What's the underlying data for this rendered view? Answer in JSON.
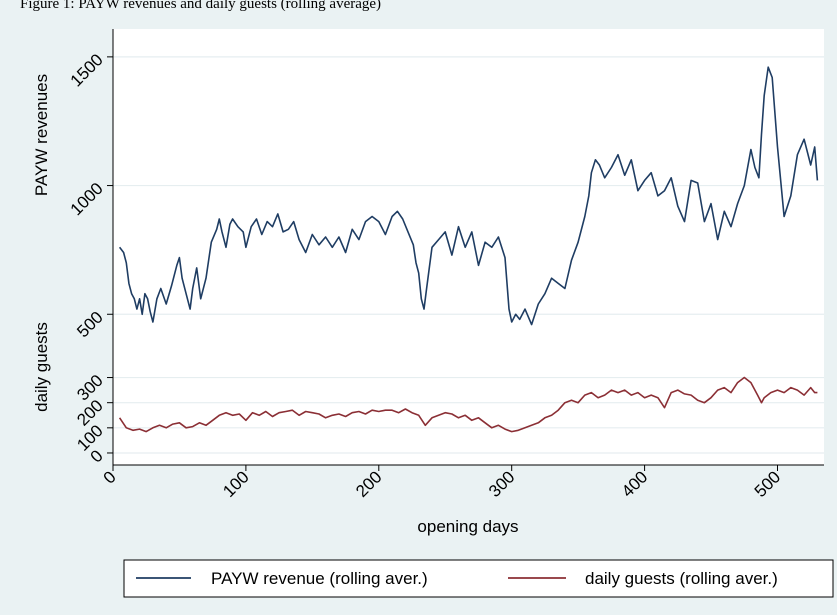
{
  "caption_text": "Figure 1: PAYW revenues and daily guests (rolling average)",
  "colors": {
    "background": "#eaf2f3",
    "plot_background": "#ffffff",
    "gridline": "#e6eef0",
    "revenue": "#1f3d63",
    "guests": "#8b2f35"
  },
  "chart_data": {
    "type": "line",
    "xlabel": "opening days",
    "xlim": [
      0,
      535
    ],
    "x_ticks": [
      0,
      100,
      200,
      300,
      400,
      500
    ],
    "x_tick_labels": [
      "0",
      "100",
      "200",
      "300",
      "400",
      "500"
    ],
    "grid": true,
    "legend_position": "bottom",
    "panels": [
      {
        "name": "revenue",
        "ylabel": "PAYW revenues",
        "ylim": [
          400,
          1550
        ],
        "y_ticks": [
          500,
          1000,
          1500
        ],
        "y_tick_labels": [
          "500",
          "1000",
          "1500"
        ]
      },
      {
        "name": "guests",
        "ylabel": "daily guests",
        "ylim": [
          -20,
          330
        ],
        "y_ticks": [
          0,
          100,
          200,
          300
        ],
        "y_tick_labels": [
          "0",
          "100",
          "200",
          "300"
        ]
      }
    ],
    "series": [
      {
        "name": "PAYW revenue (rolling aver.)",
        "panel": "revenue",
        "x": [
          5,
          8,
          10,
          12,
          14,
          16,
          18,
          20,
          22,
          24,
          26,
          28,
          30,
          33,
          36,
          40,
          44,
          48,
          50,
          52,
          55,
          58,
          60,
          63,
          66,
          70,
          74,
          78,
          80,
          82,
          85,
          88,
          90,
          94,
          98,
          100,
          104,
          108,
          112,
          116,
          120,
          124,
          128,
          132,
          136,
          140,
          145,
          150,
          155,
          160,
          165,
          170,
          175,
          180,
          185,
          190,
          195,
          200,
          205,
          210,
          214,
          218,
          222,
          226,
          228,
          230,
          232,
          234,
          236,
          238,
          240,
          245,
          250,
          255,
          260,
          265,
          270,
          275,
          280,
          285,
          290,
          295,
          298,
          300,
          303,
          306,
          310,
          315,
          320,
          325,
          330,
          335,
          340,
          345,
          350,
          355,
          358,
          360,
          363,
          366,
          370,
          375,
          380,
          385,
          390,
          395,
          400,
          405,
          410,
          415,
          420,
          425,
          430,
          435,
          440,
          445,
          450,
          455,
          460,
          465,
          470,
          475,
          480,
          483,
          486,
          488,
          490,
          493,
          496,
          500,
          505,
          510,
          515,
          520,
          525,
          528,
          530
        ],
        "y": [
          760,
          740,
          700,
          620,
          580,
          560,
          520,
          560,
          500,
          580,
          560,
          510,
          470,
          560,
          600,
          540,
          610,
          690,
          720,
          640,
          580,
          520,
          600,
          680,
          560,
          640,
          780,
          830,
          870,
          820,
          760,
          850,
          870,
          840,
          820,
          760,
          840,
          870,
          810,
          860,
          840,
          890,
          820,
          830,
          860,
          790,
          740,
          810,
          770,
          800,
          760,
          800,
          740,
          830,
          790,
          860,
          880,
          860,
          810,
          880,
          900,
          870,
          820,
          770,
          700,
          660,
          560,
          520,
          600,
          680,
          760,
          790,
          820,
          730,
          840,
          760,
          820,
          690,
          780,
          760,
          800,
          720,
          520,
          470,
          500,
          480,
          520,
          460,
          540,
          580,
          640,
          620,
          600,
          710,
          780,
          880,
          960,
          1050,
          1100,
          1080,
          1030,
          1070,
          1120,
          1040,
          1100,
          980,
          1020,
          1050,
          960,
          980,
          1030,
          920,
          860,
          1020,
          1010,
          860,
          930,
          790,
          900,
          840,
          930,
          1000,
          1140,
          1070,
          1030,
          1200,
          1350,
          1460,
          1420,
          1150,
          880,
          960,
          1120,
          1180,
          1080,
          1150,
          1020
        ],
        "color": "#1f3d63"
      },
      {
        "name": "daily guests (rolling aver.)",
        "panel": "guests",
        "x": [
          5,
          10,
          15,
          20,
          25,
          30,
          35,
          40,
          45,
          50,
          55,
          60,
          65,
          70,
          75,
          80,
          85,
          90,
          95,
          100,
          105,
          110,
          115,
          120,
          125,
          130,
          135,
          140,
          145,
          150,
          155,
          160,
          165,
          170,
          175,
          180,
          185,
          190,
          195,
          200,
          205,
          210,
          215,
          220,
          225,
          230,
          235,
          240,
          245,
          250,
          255,
          260,
          265,
          270,
          275,
          280,
          285,
          290,
          295,
          300,
          305,
          310,
          315,
          320,
          325,
          330,
          335,
          340,
          345,
          350,
          355,
          360,
          365,
          370,
          375,
          380,
          385,
          390,
          395,
          400,
          405,
          410,
          415,
          420,
          425,
          430,
          435,
          440,
          445,
          450,
          455,
          460,
          465,
          470,
          475,
          480,
          485,
          488,
          490,
          495,
          500,
          505,
          510,
          515,
          520,
          525,
          528,
          530
        ],
        "y": [
          140,
          100,
          90,
          95,
          85,
          100,
          110,
          100,
          115,
          120,
          100,
          105,
          120,
          110,
          130,
          150,
          160,
          150,
          155,
          130,
          160,
          150,
          165,
          145,
          160,
          165,
          170,
          150,
          165,
          160,
          155,
          140,
          150,
          155,
          145,
          160,
          165,
          155,
          170,
          165,
          170,
          170,
          160,
          175,
          160,
          150,
          110,
          140,
          150,
          160,
          155,
          140,
          150,
          130,
          140,
          120,
          100,
          110,
          95,
          85,
          90,
          100,
          110,
          120,
          140,
          150,
          170,
          200,
          210,
          200,
          230,
          240,
          220,
          230,
          250,
          240,
          250,
          230,
          240,
          220,
          230,
          220,
          180,
          240,
          250,
          235,
          230,
          210,
          200,
          220,
          250,
          260,
          240,
          280,
          300,
          280,
          230,
          200,
          220,
          240,
          250,
          240,
          260,
          250,
          230,
          260,
          240,
          240
        ],
        "color": "#8b2f35"
      }
    ]
  }
}
